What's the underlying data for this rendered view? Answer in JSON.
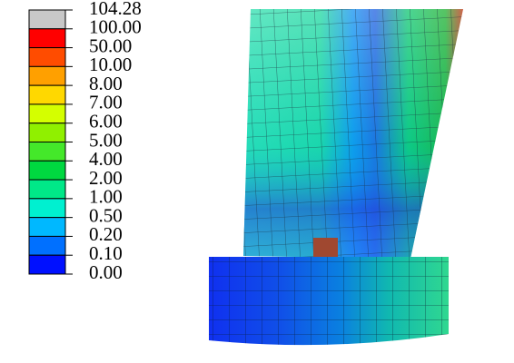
{
  "legend": {
    "labels": [
      "104.28",
      "100.00",
      "50.00",
      "10.00",
      "8.00",
      "7.00",
      "6.00",
      "5.00",
      "4.00",
      "2.00",
      "1.00",
      "0.50",
      "0.20",
      "0.10",
      "0.00"
    ],
    "colors": [
      "#c8c8c8",
      "#ff0000",
      "#ff4c00",
      "#ffa000",
      "#ffd800",
      "#d4ff00",
      "#90f000",
      "#44e82a",
      "#00d840",
      "#00e888",
      "#00f0d0",
      "#00b8ff",
      "#0070ff",
      "#0010ff"
    ]
  }
}
